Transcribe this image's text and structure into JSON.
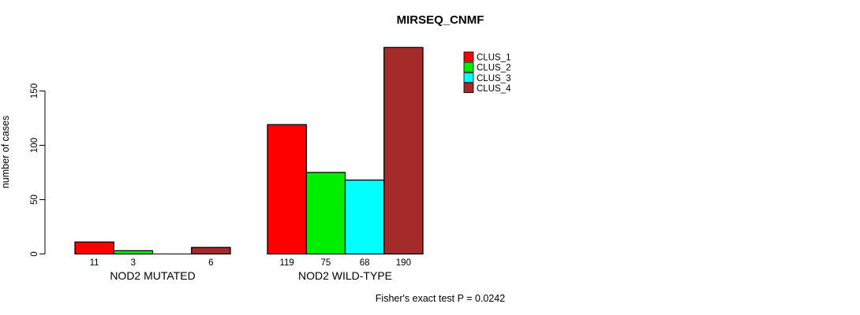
{
  "title": "MIRSEQ_CNMF",
  "chart_data": {
    "type": "bar",
    "title": "MIRSEQ_CNMF",
    "xlabel": "",
    "ylabel": "number of cases",
    "groups": [
      "NOD2 MUTATED",
      "NOD2 WILD-TYPE"
    ],
    "series": [
      {
        "name": "CLUS_1",
        "color": "#ff0000",
        "values": [
          11,
          119
        ]
      },
      {
        "name": "CLUS_2",
        "color": "#00ee00",
        "values": [
          3,
          75
        ]
      },
      {
        "name": "CLUS_3",
        "color": "#00ffff",
        "values": [
          0,
          68
        ]
      },
      {
        "name": "CLUS_4",
        "color": "#a52a2a",
        "values": [
          6,
          190
        ]
      }
    ],
    "bar_value_labels": [
      [
        11,
        3,
        0,
        6
      ],
      [
        119,
        75,
        68,
        190
      ]
    ],
    "zero_value_bars_hidden": true,
    "yticks": [
      0,
      50,
      100,
      150
    ],
    "axis_max": 150,
    "grid": false,
    "legend_position": "top-right",
    "annotation": "Fisher's exact test P = 0.0242"
  },
  "colors": {
    "axis": "#000000",
    "bar_border": "#000000",
    "text": "#000000",
    "background": "#ffffff"
  }
}
